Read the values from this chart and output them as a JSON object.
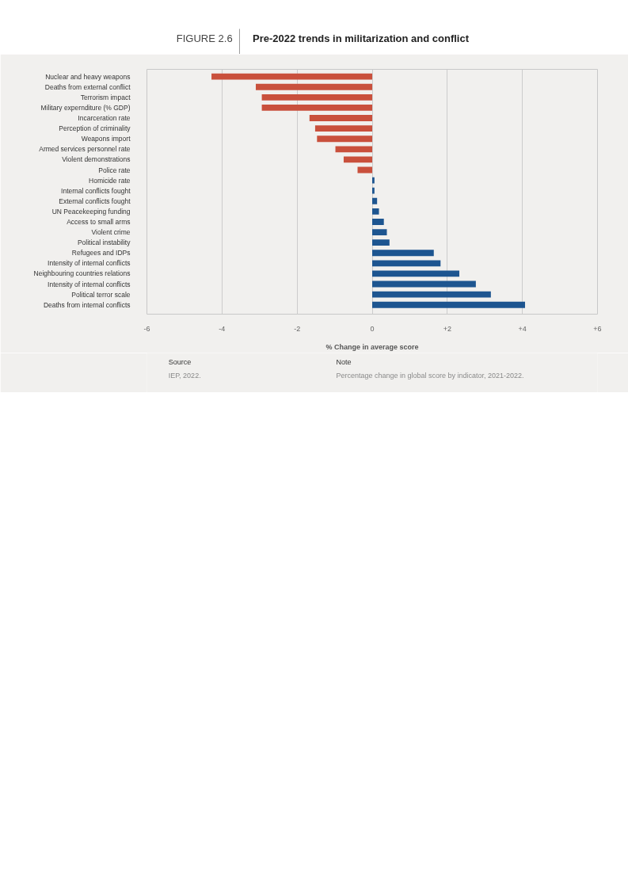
{
  "chart_data": {
    "type": "bar",
    "orientation": "horizontal",
    "title": "Pre-2022 trends in militarization and conflict",
    "xlabel": "% Change in average score",
    "categories": [
      "Nuclear and heavy weapons",
      "Deaths from external conflict",
      "Terrorism impact",
      "Military expernditure (% GDP)",
      "Incarceration rate",
      "Perception of criminality",
      "Weapons import",
      "Armed services personnel rate",
      "Violent demonstrations",
      "Police rate",
      "Homicide rate",
      "Internal conflicts fought",
      "External conflicts fought",
      "UN Peacekeeping funding",
      "Access to small arms",
      "Violent crime",
      "Political instability",
      "Refugees and IDPs",
      "Intensity of internal conflicts",
      "Neighbouring countries relations",
      "Intensity of internal conflicts",
      "Political terror scale",
      "Deaths from internal conflicts"
    ],
    "values": [
      -4.28,
      -3.1,
      -2.94,
      -2.94,
      -1.67,
      -1.52,
      -1.47,
      -0.98,
      -0.76,
      -0.39,
      0.06,
      0.06,
      0.13,
      0.18,
      0.31,
      0.39,
      0.46,
      1.64,
      1.82,
      2.32,
      2.76,
      3.16,
      4.07
    ],
    "colors": [
      "#c9503c",
      "#c9503c",
      "#c9503c",
      "#c9503c",
      "#c9503c",
      "#c9503c",
      "#c9503c",
      "#c9503c",
      "#c9503c",
      "#c9503c",
      "#1d5590",
      "#1d5590",
      "#1d5590",
      "#1d5590",
      "#1d5590",
      "#1d5590",
      "#1d5590",
      "#1d5590",
      "#1d5590",
      "#1d5590",
      "#1d5590",
      "#1d5590",
      "#1d5590"
    ],
    "xlim": [
      -6,
      6
    ],
    "xticks": [
      -6,
      -4,
      -2,
      0,
      {
        "value": 2,
        "label": "+2"
      },
      {
        "value": 4,
        "label": "+4"
      },
      {
        "value": 6,
        "label": "+6"
      }
    ],
    "grid": "x",
    "annotations": [
      "FIGURE 2.6",
      "Source",
      "IEP, 2022.",
      "Note",
      "Percentage change in global score by indicator, 2021-2022."
    ]
  }
}
